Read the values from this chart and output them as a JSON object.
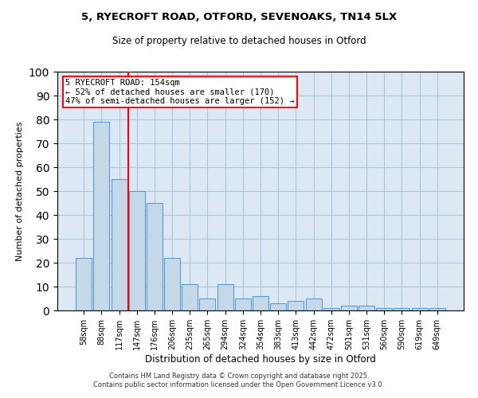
{
  "title1": "5, RYECROFT ROAD, OTFORD, SEVENOAKS, TN14 5LX",
  "title2": "Size of property relative to detached houses in Otford",
  "xlabel": "Distribution of detached houses by size in Otford",
  "ylabel": "Number of detached properties",
  "categories": [
    "58sqm",
    "88sqm",
    "117sqm",
    "147sqm",
    "176sqm",
    "206sqm",
    "235sqm",
    "265sqm",
    "294sqm",
    "324sqm",
    "354sqm",
    "383sqm",
    "413sqm",
    "442sqm",
    "472sqm",
    "501sqm",
    "531sqm",
    "560sqm",
    "590sqm",
    "619sqm",
    "649sqm"
  ],
  "values": [
    22,
    79,
    55,
    50,
    45,
    22,
    11,
    5,
    11,
    5,
    6,
    3,
    4,
    5,
    1,
    2,
    2,
    1,
    1,
    1,
    1
  ],
  "bar_color": "#c5d8e8",
  "bar_edge_color": "#5b9bd5",
  "vline_x": 2.5,
  "vline_color": "red",
  "annotation_text": "5 RYECROFT ROAD: 154sqm\n← 52% of detached houses are smaller (170)\n47% of semi-detached houses are larger (152) →",
  "annotation_box_color": "white",
  "annotation_box_edge": "red",
  "ylim": [
    0,
    100
  ],
  "yticks": [
    0,
    10,
    20,
    30,
    40,
    50,
    60,
    70,
    80,
    90,
    100
  ],
  "grid_color": "#b0c4d8",
  "bg_color": "#dce9f5",
  "footer": "Contains HM Land Registry data © Crown copyright and database right 2025.\nContains public sector information licensed under the Open Government Licence v3.0."
}
